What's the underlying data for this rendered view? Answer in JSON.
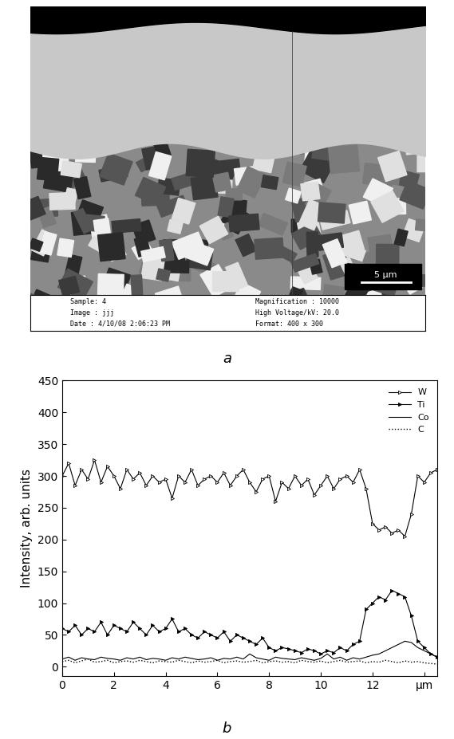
{
  "panel_labels": [
    "a",
    "b"
  ],
  "micrograph": {
    "scale_bar": "5 µm",
    "info_left": [
      "Sample: 4",
      "Image : jjj",
      "Date : 4/10/08 2:06:23 PM"
    ],
    "info_right": [
      "Magnification : 10000",
      "High Voltage/kV: 20.0",
      "Format: 400 x 300"
    ]
  },
  "chart_data": {
    "type": "line",
    "y_label": "Intensity, arb. units",
    "xlim": [
      0,
      14.5
    ],
    "xticks": [
      0,
      2,
      4,
      6,
      8,
      10,
      12,
      {
        "value": 14,
        "label": "µm"
      }
    ],
    "ylim": [
      -15,
      450
    ],
    "yticks": [
      0,
      50,
      100,
      150,
      200,
      250,
      300,
      350,
      400,
      450
    ],
    "grid": false,
    "legend": "upper right",
    "x": [
      0,
      0.25,
      0.5,
      0.75,
      1,
      1.25,
      1.5,
      1.75,
      2,
      2.25,
      2.5,
      2.75,
      3,
      3.25,
      3.5,
      3.75,
      4,
      4.25,
      4.5,
      4.75,
      5,
      5.25,
      5.5,
      5.75,
      6,
      6.25,
      6.5,
      6.75,
      7,
      7.25,
      7.5,
      7.75,
      8,
      8.25,
      8.5,
      8.75,
      9,
      9.25,
      9.5,
      9.75,
      10,
      10.25,
      10.5,
      10.75,
      11,
      11.25,
      11.5,
      11.75,
      12,
      12.25,
      12.5,
      12.75,
      13,
      13.25,
      13.5,
      13.75,
      14,
      14.25,
      14.5
    ],
    "series": [
      {
        "name": "W",
        "color": "#000000",
        "marker": "open_triangle",
        "line_style": "solid",
        "values": [
          300,
          320,
          285,
          310,
          295,
          325,
          290,
          315,
          300,
          280,
          310,
          295,
          305,
          285,
          300,
          290,
          295,
          265,
          300,
          290,
          310,
          285,
          295,
          300,
          290,
          305,
          285,
          300,
          310,
          290,
          275,
          295,
          300,
          260,
          290,
          280,
          300,
          285,
          295,
          270,
          285,
          300,
          280,
          295,
          300,
          290,
          310,
          280,
          225,
          215,
          220,
          210,
          215,
          205,
          240,
          300,
          290,
          305,
          310
        ]
      },
      {
        "name": "Ti",
        "color": "#000000",
        "marker": "filled_triangle",
        "line_style": "solid",
        "values": [
          60,
          55,
          65,
          50,
          60,
          55,
          70,
          50,
          65,
          60,
          55,
          70,
          60,
          50,
          65,
          55,
          60,
          75,
          55,
          60,
          50,
          45,
          55,
          50,
          45,
          55,
          40,
          50,
          45,
          40,
          35,
          45,
          30,
          25,
          30,
          28,
          25,
          22,
          28,
          25,
          20,
          25,
          22,
          30,
          25,
          35,
          40,
          90,
          100,
          110,
          105,
          120,
          115,
          110,
          80,
          40,
          30,
          20,
          15
        ]
      },
      {
        "name": "Co",
        "color": "#000000",
        "marker": "none",
        "line_style": "solid",
        "values": [
          12,
          15,
          10,
          14,
          12,
          11,
          15,
          13,
          12,
          10,
          14,
          12,
          15,
          11,
          13,
          12,
          10,
          14,
          12,
          15,
          13,
          11,
          12,
          14,
          10,
          13,
          12,
          15,
          12,
          20,
          14,
          12,
          10,
          15,
          13,
          12,
          11,
          14,
          12,
          10,
          13,
          20,
          12,
          15,
          10,
          14,
          12,
          15,
          18,
          20,
          25,
          30,
          35,
          40,
          38,
          30,
          25,
          20,
          15
        ]
      },
      {
        "name": "C",
        "color": "#000000",
        "marker": "none",
        "line_style": "dotted",
        "values": [
          8,
          10,
          6,
          9,
          12,
          7,
          8,
          10,
          6,
          8,
          9,
          7,
          10,
          8,
          6,
          9,
          8,
          7,
          10,
          8,
          6,
          9,
          7,
          8,
          10,
          6,
          8,
          9,
          7,
          8,
          10,
          6,
          8,
          9,
          7,
          8,
          6,
          10,
          8,
          7,
          9,
          6,
          8,
          10,
          7,
          8,
          9,
          6,
          8,
          7,
          10,
          8,
          6,
          9,
          7,
          8,
          6,
          5,
          4
        ]
      }
    ]
  }
}
